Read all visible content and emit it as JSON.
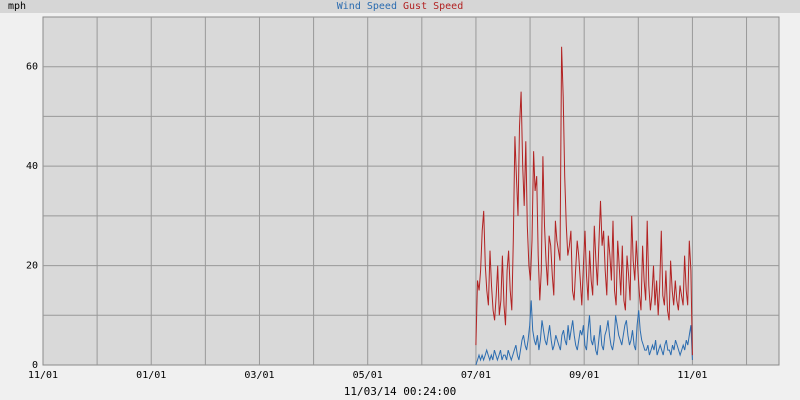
{
  "chart_data": {
    "type": "line",
    "unit_label": "mph",
    "timestamp": "11/03/14 00:24:00",
    "x_ticks": [
      "11/01",
      "01/01",
      "03/01",
      "05/01",
      "07/01",
      "09/01",
      "11/01"
    ],
    "y_ticks": [
      0,
      20,
      40,
      60
    ],
    "ylim": [
      0,
      70
    ],
    "grid": true,
    "legend_position": "top-center",
    "series": [
      {
        "name": "Wind Speed",
        "color": "#2b6cb0",
        "x_range": [
          "07/01",
          "11/01"
        ],
        "values": [
          0,
          1,
          2,
          1,
          2,
          1,
          2,
          3,
          2,
          1,
          2,
          1,
          3,
          2,
          1,
          2,
          3,
          1,
          2,
          2,
          1,
          3,
          2,
          1,
          2,
          3,
          4,
          2,
          1,
          3,
          5,
          6,
          4,
          3,
          5,
          8,
          13,
          7,
          5,
          4,
          6,
          3,
          5,
          9,
          7,
          5,
          4,
          6,
          8,
          5,
          3,
          4,
          6,
          5,
          4,
          3,
          6,
          7,
          5,
          4,
          8,
          5,
          7,
          9,
          6,
          4,
          3,
          5,
          7,
          6,
          8,
          4,
          3,
          7,
          10,
          5,
          4,
          6,
          3,
          2,
          5,
          8,
          4,
          3,
          6,
          7,
          9,
          6,
          4,
          3,
          5,
          10,
          8,
          6,
          5,
          4,
          6,
          8,
          9,
          6,
          4,
          5,
          7,
          4,
          3,
          8,
          11,
          7,
          5,
          4,
          3,
          3,
          4,
          2,
          3,
          4,
          3,
          5,
          2,
          3,
          4,
          3,
          2,
          4,
          5,
          3,
          3,
          2,
          4,
          3,
          5,
          4,
          3,
          2,
          3,
          4,
          3,
          5,
          4,
          6,
          8,
          1
        ]
      },
      {
        "name": "Gust Speed",
        "color": "#b22222",
        "x_range": [
          "07/01",
          "11/01"
        ],
        "values": [
          4,
          17,
          15,
          19,
          27,
          31,
          20,
          15,
          12,
          23,
          16,
          11,
          9,
          14,
          20,
          10,
          13,
          22,
          12,
          8,
          19,
          23,
          15,
          11,
          25,
          46,
          38,
          30,
          48,
          55,
          40,
          32,
          45,
          28,
          20,
          17,
          25,
          43,
          35,
          38,
          22,
          13,
          19,
          42,
          28,
          21,
          16,
          26,
          24,
          18,
          14,
          29,
          25,
          23,
          21,
          64,
          54,
          38,
          28,
          22,
          24,
          27,
          15,
          13,
          19,
          25,
          22,
          17,
          12,
          20,
          27,
          18,
          13,
          23,
          17,
          14,
          28,
          21,
          16,
          25,
          33,
          24,
          27,
          19,
          14,
          26,
          22,
          17,
          29,
          15,
          12,
          25,
          20,
          14,
          24,
          13,
          11,
          22,
          18,
          13,
          30,
          21,
          17,
          25,
          19,
          14,
          11,
          24,
          17,
          13,
          29,
          16,
          11,
          14,
          20,
          12,
          17,
          10,
          16,
          27,
          14,
          12,
          19,
          11,
          9,
          21,
          15,
          12,
          17,
          13,
          11,
          16,
          14,
          12,
          22,
          15,
          12,
          25,
          19,
          2
        ]
      }
    ]
  }
}
